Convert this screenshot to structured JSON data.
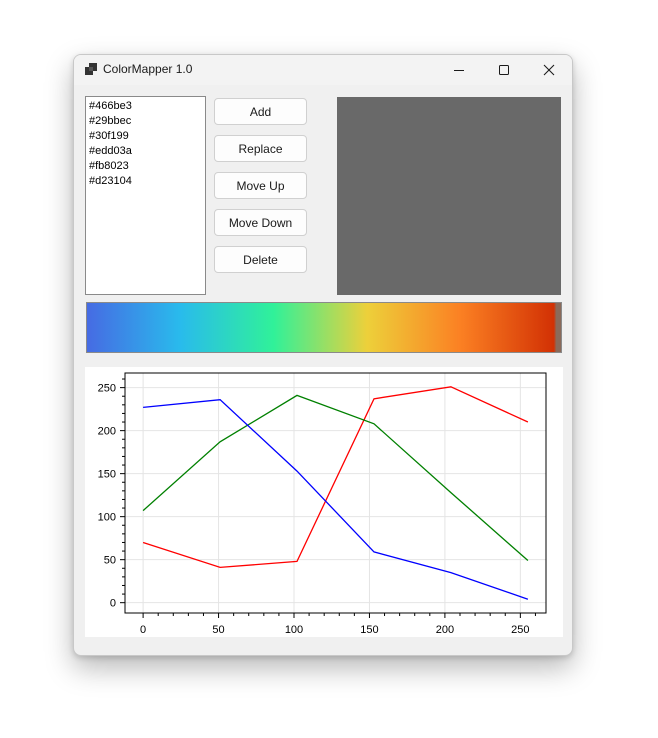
{
  "window": {
    "title": "ColorMapper 1.0"
  },
  "colors": {
    "items": [
      "#466be3",
      "#29bbec",
      "#30f199",
      "#edd03a",
      "#fb8023",
      "#d23104"
    ],
    "preview": "#696969",
    "gradient_end": "#8a6a5a"
  },
  "buttons": {
    "add": "Add",
    "replace": "Replace",
    "move_up": "Move Up",
    "move_down": "Move Down",
    "delete": "Delete"
  },
  "chart_data": {
    "type": "line",
    "xlim": [
      -12,
      267
    ],
    "ylim": [
      -12,
      267
    ],
    "xticks": [
      0,
      50,
      100,
      150,
      200,
      250
    ],
    "yticks": [
      0,
      50,
      100,
      150,
      200,
      250
    ],
    "grid": true,
    "series": [
      {
        "color": "#ff0000",
        "x": [
          0,
          51,
          102,
          153,
          204,
          255
        ],
        "y": [
          70,
          41,
          48,
          237,
          251,
          210
        ]
      },
      {
        "color": "#008000",
        "x": [
          0,
          51,
          102,
          153,
          204,
          255
        ],
        "y": [
          107,
          187,
          241,
          208,
          128,
          49
        ]
      },
      {
        "color": "#0000ff",
        "x": [
          0,
          51,
          102,
          153,
          204,
          255
        ],
        "y": [
          227,
          236,
          153,
          59,
          35,
          4
        ]
      }
    ]
  }
}
